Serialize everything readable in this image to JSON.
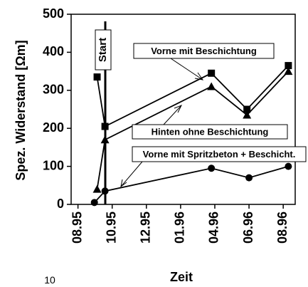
{
  "chart_data": {
    "type": "line",
    "ylabel": "Spez. Widerstand [Ωm]",
    "xlabel": "Zeit",
    "xlim": [
      -0.2,
      6.35
    ],
    "ylim": [
      0,
      500
    ],
    "xticks": [
      {
        "value": 0,
        "label": "08.95"
      },
      {
        "value": 1,
        "label": "10.95"
      },
      {
        "value": 2,
        "label": "12.95"
      },
      {
        "value": 3,
        "label": "01.96"
      },
      {
        "value": 4,
        "label": "04.96"
      },
      {
        "value": 5,
        "label": "06.96"
      },
      {
        "value": 6,
        "label": "08.96"
      }
    ],
    "yticks": [
      0,
      100,
      200,
      300,
      400,
      500
    ],
    "series": [
      {
        "name": "Vorne mit Beschichtung",
        "color": "#000000",
        "marker": "square",
        "x": [
          0.56,
          0.79,
          3.9,
          4.94,
          6.15
        ],
        "values": [
          335,
          205,
          345,
          250,
          365
        ]
      },
      {
        "name": "Hinten ohne Beschichtung",
        "color": "#000000",
        "marker": "triangle",
        "x": [
          0.56,
          0.79,
          3.9,
          4.94,
          6.15
        ],
        "values": [
          40,
          170,
          310,
          235,
          350
        ]
      },
      {
        "name": "Vorne mit Spritzbeton + Beschicht.",
        "color": "#000000",
        "marker": "circle",
        "x": [
          0.48,
          0.79,
          3.9,
          5.0,
          6.15
        ],
        "values": [
          5,
          35,
          95,
          70,
          100
        ]
      }
    ],
    "annotations": [
      "Start"
    ],
    "page_number": "10"
  }
}
